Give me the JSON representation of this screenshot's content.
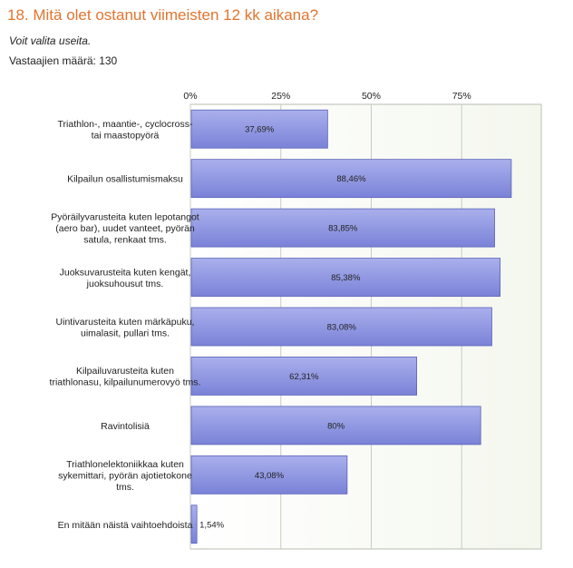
{
  "question": {
    "title": "18. Mitä olet ostanut viimeisten 12 kk aikana?",
    "hint": "Voit valita useita.",
    "respondents_label": "Vastaajien määrä:",
    "respondents_count": "130"
  },
  "colors": {
    "title": "#e2742f",
    "bar_fill_top": "#aab0ec",
    "bar_fill_bottom": "#7a82d8",
    "bar_stroke": "#5a62b8",
    "plot_bg": "#f4f7ee",
    "grid": "#c8ccc0"
  },
  "chart_data": {
    "type": "bar",
    "orientation": "horizontal",
    "xlim": [
      0,
      97
    ],
    "ticks": [
      {
        "value": 0,
        "label": "0%"
      },
      {
        "value": 25,
        "label": "25%"
      },
      {
        "value": 50,
        "label": "50%"
      },
      {
        "value": 75,
        "label": "75%"
      }
    ],
    "grid": true,
    "categories": [
      [
        "Triathlon-, maantie-, cyclocross-",
        "tai maastopyörä"
      ],
      [
        "Kilpailun osallistumismaksu"
      ],
      [
        "Pyöräilyvarusteita kuten lepotangot",
        "(aero bar), uudet vanteet, pyörän",
        "satula, renkaat tms."
      ],
      [
        "Juoksuvarusteita kuten kengät,",
        "juoksuhousut tms."
      ],
      [
        "Uintivarusteita kuten märkäpuku,",
        "uimalasit, pullari tms."
      ],
      [
        "Kilpailuvarusteita kuten",
        "triathlonasu, kilpailunumerovyö tms."
      ],
      [
        "Ravintolisiä"
      ],
      [
        "Triathlonelektoniikkaa kuten",
        "sykemittari, pyörän ajotietokone",
        "tms."
      ],
      [
        "En mitään näistä vaihtoehdoista"
      ]
    ],
    "values": [
      37.69,
      88.46,
      83.85,
      85.38,
      83.08,
      62.31,
      80,
      43.08,
      1.54
    ],
    "value_labels": [
      "37,69%",
      "88,46%",
      "83,85%",
      "85,38%",
      "83,08%",
      "62,31%",
      "80%",
      "43,08%",
      "1,54%"
    ]
  }
}
